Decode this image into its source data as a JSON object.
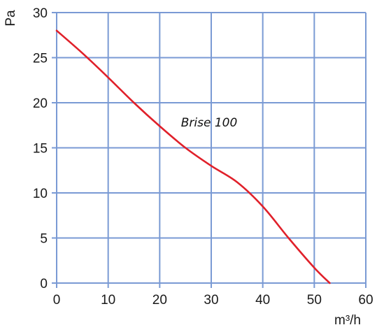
{
  "chart_data": {
    "type": "line",
    "xlabel": "m³/h",
    "ylabel": "Pa",
    "xlim": [
      0,
      60
    ],
    "ylim": [
      0,
      30
    ],
    "xticks": [
      "0",
      "10",
      "20",
      "30",
      "40",
      "50",
      "60"
    ],
    "yticks": [
      "0",
      "5",
      "10",
      "15",
      "20",
      "25",
      "30"
    ],
    "grid": true,
    "annotation": "Brise 100",
    "series": [
      {
        "color": "#e0202a",
        "x": [
          0,
          5,
          10,
          15,
          20,
          25,
          30,
          35,
          40,
          45,
          50,
          53
        ],
        "y": [
          28,
          25.5,
          22.8,
          20,
          17.4,
          15,
          13,
          11.2,
          8.5,
          5,
          1.7,
          0
        ]
      }
    ],
    "grid_color": "#7a9ad4"
  }
}
